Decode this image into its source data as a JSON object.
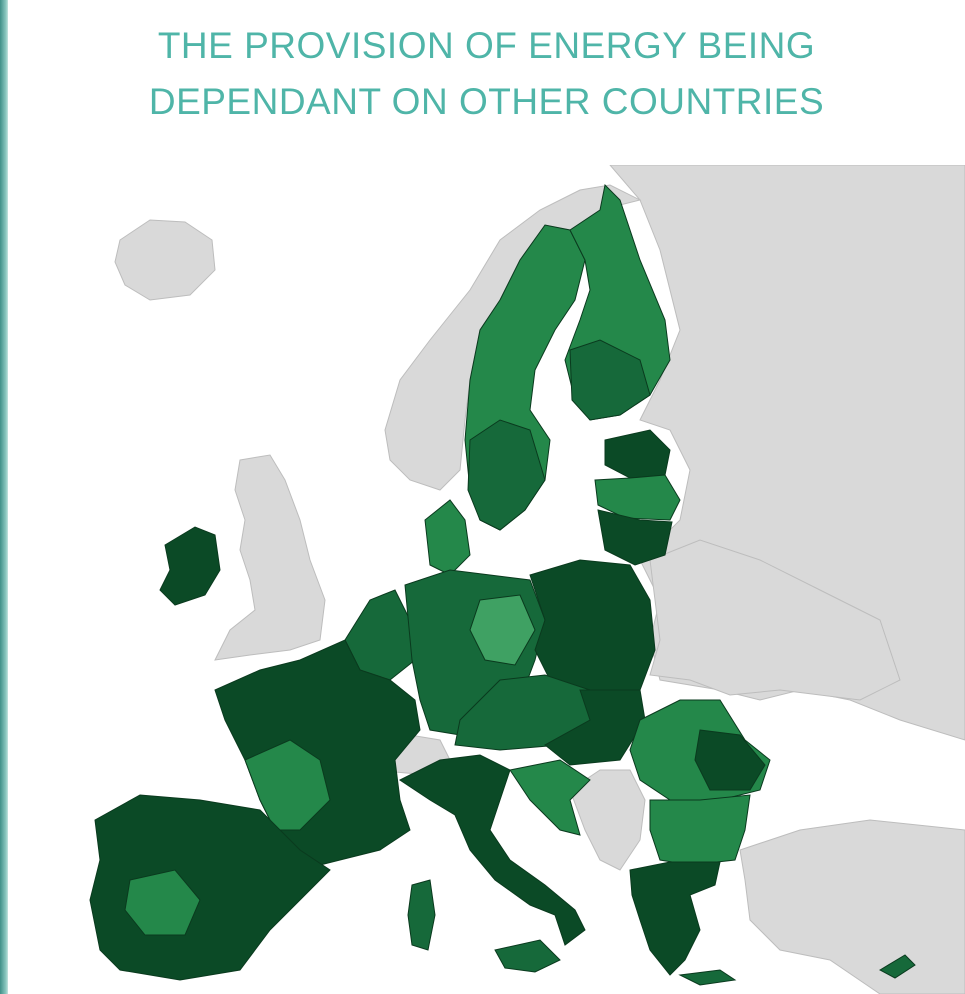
{
  "header": {
    "title_lines": [
      "THE PROVISION OF ENERGY BEING",
      "DEPENDANT ON OTHER COUNTRIES"
    ]
  }
}
